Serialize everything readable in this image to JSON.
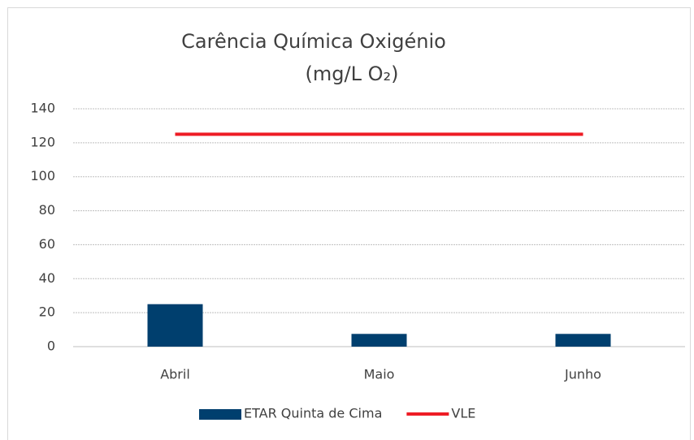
{
  "chart_data": {
    "type": "bar",
    "title": [
      "Carência Química Oxigénio",
      "(mg/L O₂)"
    ],
    "categories": [
      "Abril",
      "Maio",
      "Junho"
    ],
    "series": [
      {
        "name": "ETAR Quinta de Cima",
        "type": "bar",
        "color": "#003f6e",
        "values": [
          25,
          7.5,
          7.5
        ]
      },
      {
        "name": "VLE",
        "type": "line",
        "color": "#ee1c25",
        "values": [
          125,
          125,
          125
        ]
      }
    ],
    "ylim": [
      0,
      140
    ],
    "yticks": [
      0,
      20,
      40,
      60,
      80,
      100,
      120,
      140
    ],
    "grid": true,
    "legend": "bottom"
  }
}
